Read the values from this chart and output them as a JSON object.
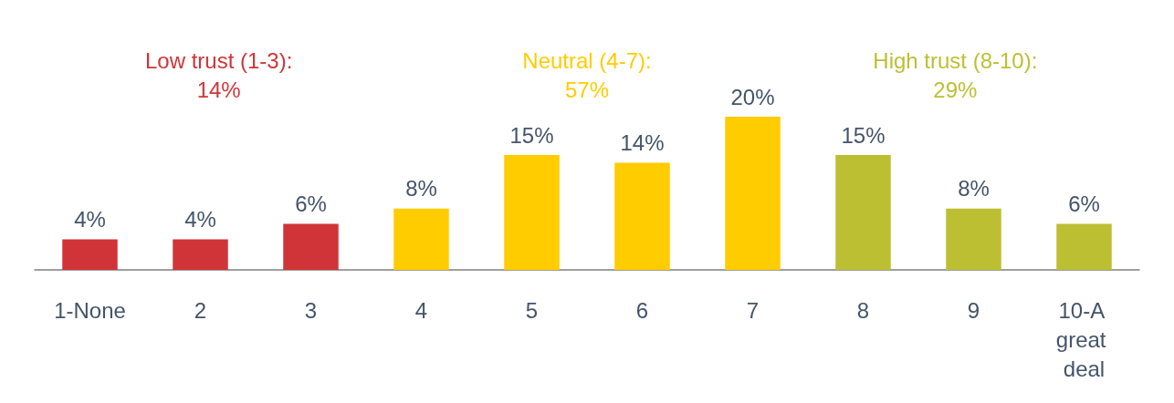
{
  "chart_data": {
    "type": "bar",
    "categories": [
      "1-None",
      "2",
      "3",
      "4",
      "5",
      "6",
      "7",
      "8",
      "9",
      "10-A great deal"
    ],
    "values": [
      4,
      4,
      6,
      8,
      15,
      14,
      20,
      15,
      8,
      6
    ],
    "colors": [
      "#d13438",
      "#d13438",
      "#d13438",
      "#ffcc00",
      "#ffcc00",
      "#ffcc00",
      "#ffcc00",
      "#bdbf33",
      "#bdbf33",
      "#bdbf33"
    ],
    "value_labels": [
      "4%",
      "4%",
      "6%",
      "8%",
      "15%",
      "14%",
      "20%",
      "15%",
      "8%",
      "6%"
    ],
    "annotations": [
      "Low trust (1-3):\n14%",
      "Neutral (4-7):\n57%",
      "High trust (8-10):\n29%"
    ]
  }
}
